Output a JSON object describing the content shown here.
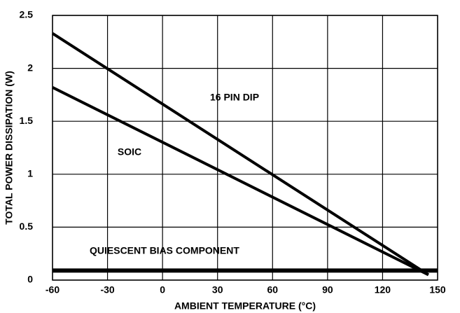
{
  "chart_data": {
    "type": "line",
    "xlabel": "AMBIENT TEMPERATURE (°C)",
    "ylabel": "TOTAL POWER DISSIPATION (W)",
    "xlim": [
      -60,
      150
    ],
    "xticks": [
      -60,
      -30,
      0,
      30,
      60,
      90,
      120,
      150
    ],
    "ylim": [
      0,
      2.5
    ],
    "yticks": [
      0,
      0.5,
      1,
      1.5,
      2,
      2.5
    ],
    "grid": true,
    "series": [
      {
        "name": "16 PIN DIP",
        "color": "#000000",
        "x": [
          -60,
          145
        ],
        "values": [
          2.33,
          0.05
        ]
      },
      {
        "name": "SOIC",
        "color": "#000000",
        "x": [
          -60,
          145
        ],
        "values": [
          1.82,
          0.05
        ]
      },
      {
        "name": "QUIESCENT BIAS COMPONENT",
        "color": "#000000",
        "x": [
          -60,
          150
        ],
        "values": [
          0.09,
          0.09
        ]
      }
    ]
  }
}
